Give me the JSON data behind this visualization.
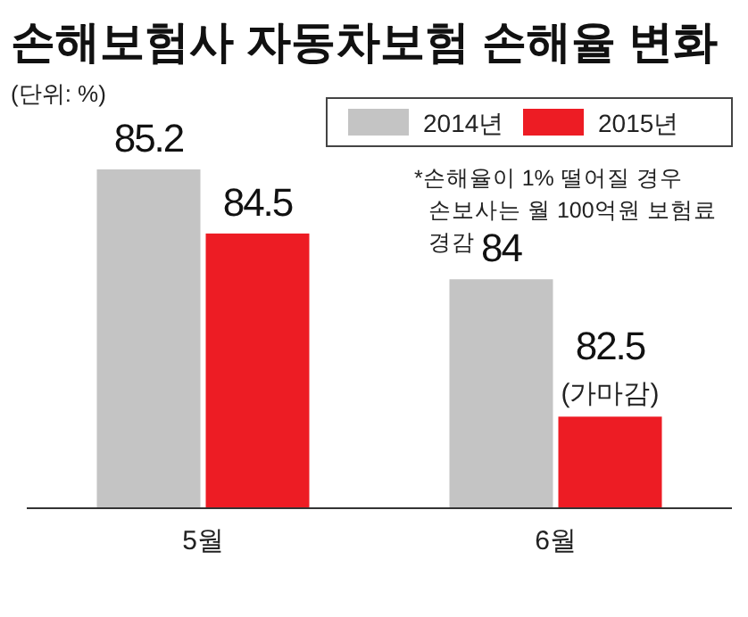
{
  "chart_data": {
    "type": "bar",
    "title": "손해보험사 자동차보험 손해율 변화",
    "subtitle": "(단위: %)",
    "categories": [
      "5월",
      "6월"
    ],
    "series": [
      {
        "name": "2014년",
        "color": "#c4c4c4",
        "values": [
          85.2,
          84
        ]
      },
      {
        "name": "2015년",
        "color": "#ed1c24",
        "values": [
          84.5,
          82.5
        ]
      }
    ],
    "ylim": [
      81.5,
      85.2
    ],
    "data_labels": true,
    "legend": "top right",
    "annotations": [
      "*손해율이 1% 떨어질 경우 손보사는 월 100억원 보험료 경감",
      {
        "text": "(가마감)",
        "x": "6월",
        "y": 82.5
      }
    ]
  }
}
